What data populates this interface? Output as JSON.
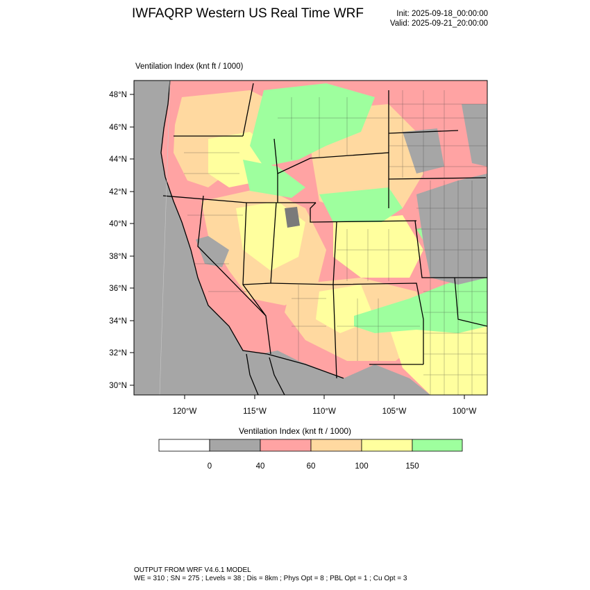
{
  "header": {
    "title": "IWFAQRP Western US Real Time WRF",
    "init": "Init: 2025-09-18_00:00:00",
    "valid": "Valid: 2025-09-21_20:00:00"
  },
  "map": {
    "subtitle": "Ventilation Index   (knt ft / 1000)",
    "lat_labels": [
      "48°N",
      "46°N",
      "44°N",
      "42°N",
      "40°N",
      "38°N",
      "36°N",
      "34°N",
      "32°N",
      "30°N"
    ],
    "lon_labels": [
      "120°W",
      "115°W",
      "110°W",
      "105°W",
      "100°W"
    ]
  },
  "colorbar": {
    "title": "Ventilation Index   (knt ft / 1000)",
    "ticks": [
      "0",
      "40",
      "60",
      "100",
      "150"
    ],
    "colors": [
      "#ffffff",
      "#a6a6a6",
      "#ffa3a3",
      "#ffd9a0",
      "#ffff9e",
      "#9eff9e"
    ]
  },
  "footer": {
    "line1": "OUTPUT FROM WRF V4.6.1 MODEL",
    "line2": "WE = 310 ; SN = 275 ; Levels = 38 ; Dis = 8km ; Phys Opt = 8 ; PBL Opt = 1 ; Cu Opt = 3"
  }
}
